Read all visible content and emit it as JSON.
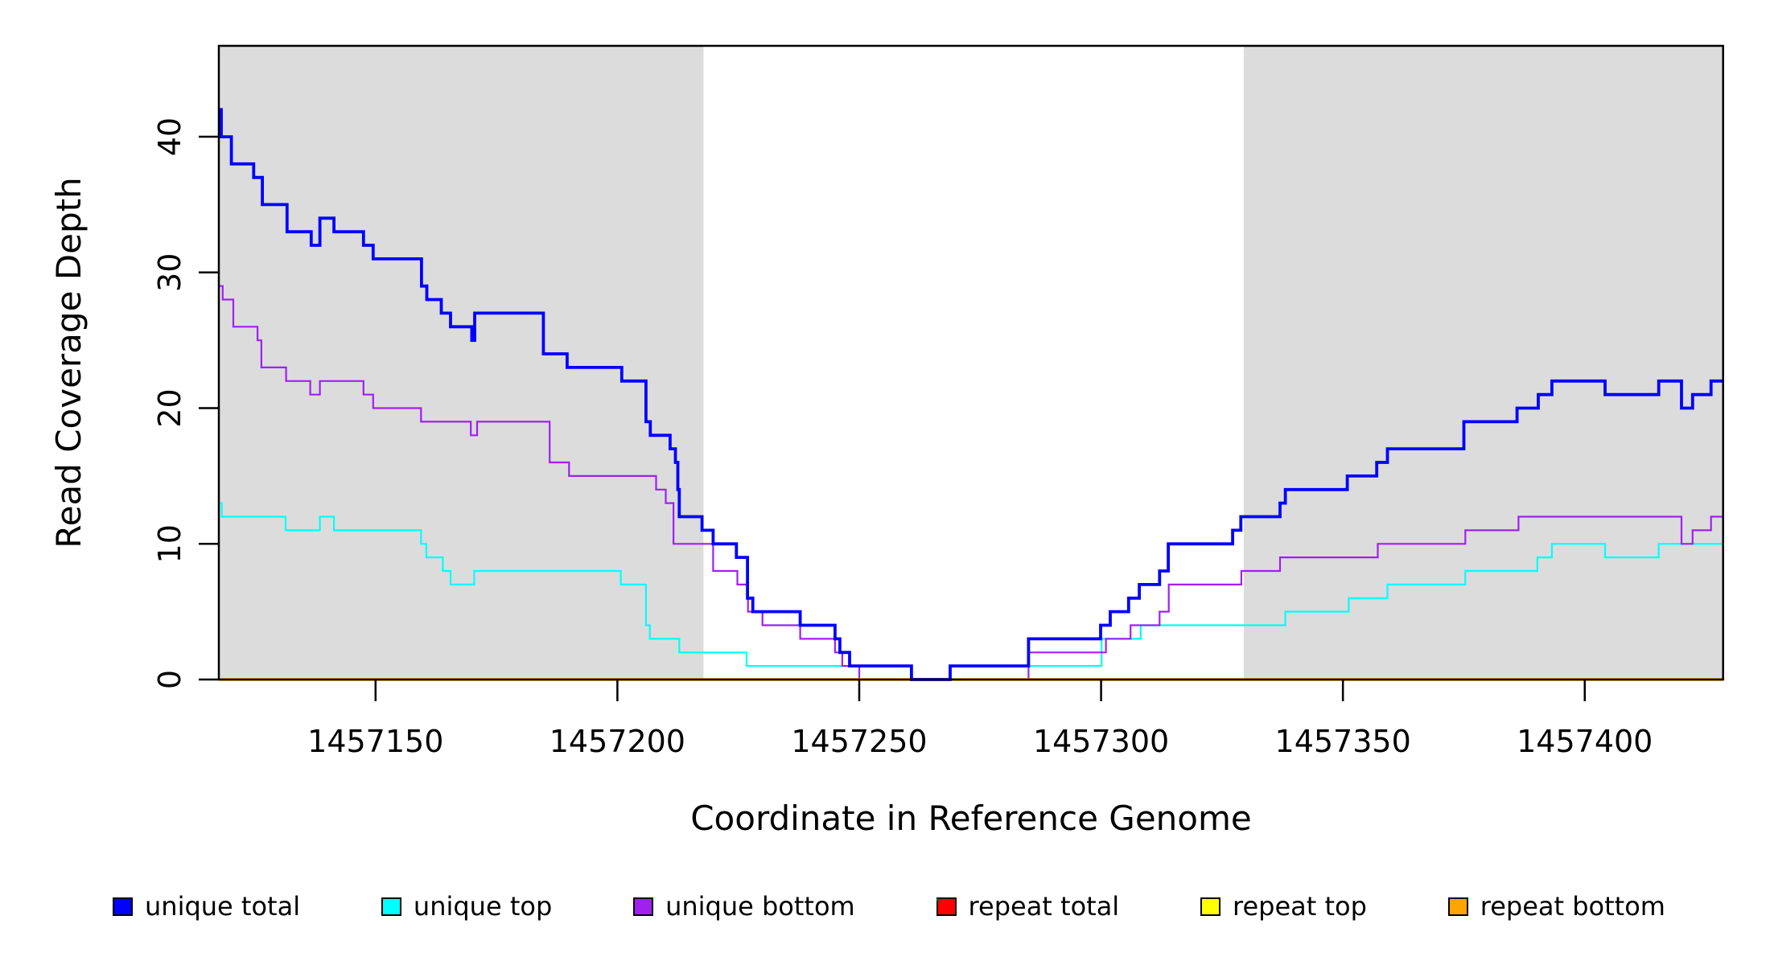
{
  "figure": {
    "background": "#FFFFFF",
    "plot_background": "#FFFFFF",
    "shaded_region_color": "#DCDCDC",
    "box_color": "#000000"
  },
  "chart_data": {
    "type": "line",
    "subtype": "step-coverage",
    "title": "",
    "xlabel": "Coordinate in Reference Genome",
    "ylabel": "Read Coverage Depth",
    "xlim": [
      1457117.6,
      1457428.6
    ],
    "ylim": [
      0,
      46.7
    ],
    "x_ticks": [
      1457150,
      1457200,
      1457250,
      1457300,
      1457350,
      1457400
    ],
    "x_tick_labels": [
      "1457150",
      "1457200",
      "1457250",
      "1457300",
      "1457350",
      "1457400"
    ],
    "y_ticks": [
      0,
      10,
      20,
      30,
      40
    ],
    "y_tick_labels": [
      "0",
      "10",
      "20",
      "30",
      "40"
    ],
    "grid": false,
    "legend_position": "bottom",
    "shaded_regions": [
      {
        "name": "left-gray-region",
        "x0": 1457117.6,
        "x1": 1457217.8
      },
      {
        "name": "right-gray-region",
        "x0": 1457329.5,
        "x1": 1457428.6
      }
    ],
    "series": [
      {
        "name": "unique top",
        "color": "#00FFFF",
        "line_width": 2.2,
        "points": [
          [
            1457117.6,
            13
          ],
          [
            1457118.2,
            12
          ],
          [
            1457131.4,
            11
          ],
          [
            1457138.5,
            12
          ],
          [
            1457141.4,
            11
          ],
          [
            1457159.4,
            10
          ],
          [
            1457160.5,
            9
          ],
          [
            1457163.9,
            8
          ],
          [
            1457165.5,
            7
          ],
          [
            1457170.4,
            8
          ],
          [
            1457200.7,
            7
          ],
          [
            1457205.9,
            4
          ],
          [
            1457206.7,
            3
          ],
          [
            1457212.8,
            2
          ],
          [
            1457226.7,
            1
          ],
          [
            1457260.8,
            0
          ],
          [
            1457268.8,
            1
          ],
          [
            1457300.1,
            3
          ],
          [
            1457308.2,
            4
          ],
          [
            1457338.1,
            5
          ],
          [
            1457351.2,
            6
          ],
          [
            1457359.2,
            7
          ],
          [
            1457375.3,
            8
          ],
          [
            1457390.2,
            9
          ],
          [
            1457393.2,
            10
          ],
          [
            1457404.2,
            9
          ],
          [
            1457415.3,
            10
          ]
        ]
      },
      {
        "name": "unique bottom",
        "color": "#A020F0",
        "line_width": 2.2,
        "points": [
          [
            1457117.6,
            29
          ],
          [
            1457118.4,
            28
          ],
          [
            1457120.6,
            26
          ],
          [
            1457125.6,
            25
          ],
          [
            1457126.4,
            23
          ],
          [
            1457131.5,
            22
          ],
          [
            1457136.5,
            21
          ],
          [
            1457138.5,
            22
          ],
          [
            1457147.5,
            21
          ],
          [
            1457149.5,
            20
          ],
          [
            1457159.4,
            19
          ],
          [
            1457169.7,
            18
          ],
          [
            1457171.0,
            19
          ],
          [
            1457186.0,
            16
          ],
          [
            1457190.0,
            15
          ],
          [
            1457208.0,
            14
          ],
          [
            1457210.0,
            13
          ],
          [
            1457211.6,
            10
          ],
          [
            1457219.8,
            8
          ],
          [
            1457224.8,
            7
          ],
          [
            1457227.0,
            5
          ],
          [
            1457230.0,
            4
          ],
          [
            1457237.8,
            3
          ],
          [
            1457245.0,
            2
          ],
          [
            1457246.5,
            1
          ],
          [
            1457250.0,
            0
          ],
          [
            1457285.0,
            2
          ],
          [
            1457301.0,
            3
          ],
          [
            1457306.1,
            4
          ],
          [
            1457312.1,
            5
          ],
          [
            1457314.0,
            7
          ],
          [
            1457329.0,
            8
          ],
          [
            1457337.0,
            9
          ],
          [
            1457357.2,
            10
          ],
          [
            1457375.3,
            11
          ],
          [
            1457386.3,
            12
          ],
          [
            1457420.0,
            10
          ],
          [
            1457422.3,
            11
          ],
          [
            1457426.1,
            12
          ]
        ]
      },
      {
        "name": "repeat total",
        "color": "#FF0000",
        "line_width": 2.2,
        "points": [
          [
            1457117.6,
            0
          ]
        ]
      },
      {
        "name": "repeat top",
        "color": "#FFFF00",
        "line_width": 2.2,
        "points": [
          [
            1457117.6,
            0
          ]
        ]
      },
      {
        "name": "repeat bottom",
        "color": "#FFA500",
        "line_width": 3.5,
        "points": [
          [
            1457117.6,
            0
          ]
        ]
      },
      {
        "name": "unique total",
        "color": "#0000FF",
        "line_width": 3.8,
        "points": [
          [
            1457117.6,
            42
          ],
          [
            1457118.1,
            40
          ],
          [
            1457120.2,
            38
          ],
          [
            1457124.8,
            37
          ],
          [
            1457126.6,
            35
          ],
          [
            1457131.7,
            33
          ],
          [
            1457136.7,
            32
          ],
          [
            1457138.5,
            34
          ],
          [
            1457141.4,
            33
          ],
          [
            1457147.5,
            32
          ],
          [
            1457149.5,
            31
          ],
          [
            1457159.5,
            29
          ],
          [
            1457160.6,
            28
          ],
          [
            1457163.6,
            27
          ],
          [
            1457165.5,
            26
          ],
          [
            1457169.9,
            25
          ],
          [
            1457170.5,
            27
          ],
          [
            1457184.7,
            24
          ],
          [
            1457189.6,
            23
          ],
          [
            1457200.9,
            22
          ],
          [
            1457205.9,
            19
          ],
          [
            1457206.8,
            18
          ],
          [
            1457210.9,
            17
          ],
          [
            1457212.0,
            16
          ],
          [
            1457212.5,
            14
          ],
          [
            1457212.8,
            12
          ],
          [
            1457217.5,
            11
          ],
          [
            1457219.8,
            10
          ],
          [
            1457224.6,
            9
          ],
          [
            1457226.9,
            6
          ],
          [
            1457228.0,
            5
          ],
          [
            1457237.8,
            4
          ],
          [
            1457245.0,
            3
          ],
          [
            1457246.0,
            2
          ],
          [
            1457248.0,
            1
          ],
          [
            1457260.8,
            0
          ],
          [
            1457268.8,
            1
          ],
          [
            1457285.0,
            3
          ],
          [
            1457299.9,
            4
          ],
          [
            1457301.9,
            5
          ],
          [
            1457305.7,
            6
          ],
          [
            1457307.9,
            7
          ],
          [
            1457312.1,
            8
          ],
          [
            1457313.9,
            10
          ],
          [
            1457327.2,
            11
          ],
          [
            1457328.9,
            12
          ],
          [
            1457337.0,
            13
          ],
          [
            1457338.1,
            14
          ],
          [
            1457350.9,
            15
          ],
          [
            1457357.0,
            16
          ],
          [
            1457359.2,
            17
          ],
          [
            1457375.0,
            19
          ],
          [
            1457386.0,
            20
          ],
          [
            1457390.4,
            21
          ],
          [
            1457393.2,
            22
          ],
          [
            1457404.2,
            21
          ],
          [
            1457415.3,
            22
          ],
          [
            1457420.0,
            20
          ],
          [
            1457422.3,
            21
          ],
          [
            1457426.1,
            22
          ]
        ]
      }
    ]
  },
  "legend": {
    "items": [
      {
        "label": "unique total",
        "color": "#0000FF"
      },
      {
        "label": "unique top",
        "color": "#00FFFF"
      },
      {
        "label": "unique bottom",
        "color": "#A020F0"
      },
      {
        "label": "repeat total",
        "color": "#FF0000"
      },
      {
        "label": "repeat top",
        "color": "#FFFF00"
      },
      {
        "label": "repeat bottom",
        "color": "#FFA500"
      }
    ]
  }
}
